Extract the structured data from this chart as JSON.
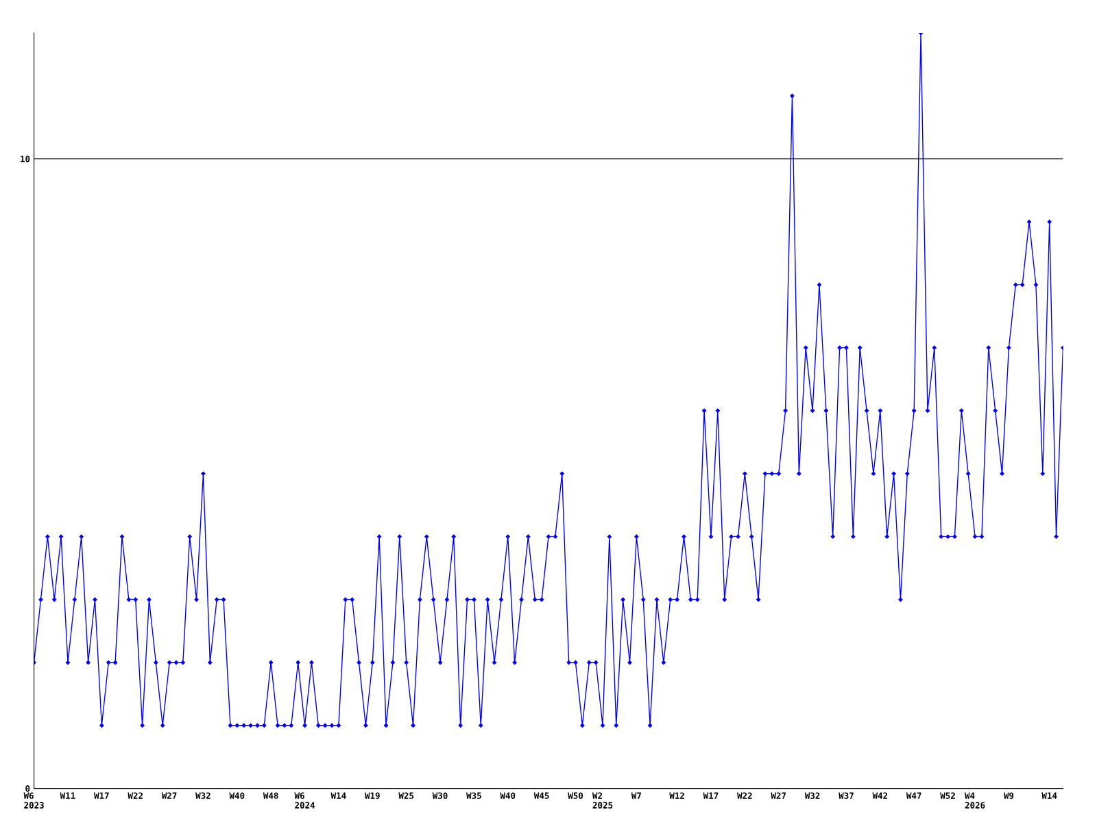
{
  "chart_data": {
    "type": "line",
    "categories": [
      "W6\n2023",
      null,
      null,
      null,
      null,
      "W11",
      null,
      null,
      null,
      null,
      "W17",
      null,
      null,
      null,
      null,
      "W22",
      null,
      null,
      null,
      null,
      "W27",
      null,
      null,
      null,
      null,
      "W32",
      null,
      null,
      null,
      null,
      "W40",
      null,
      null,
      null,
      null,
      "W48",
      null,
      null,
      null,
      null,
      "W6\n2024",
      null,
      null,
      null,
      null,
      "W14",
      null,
      null,
      null,
      null,
      "W19",
      null,
      null,
      null,
      null,
      "W25",
      null,
      null,
      null,
      null,
      "W30",
      null,
      null,
      null,
      null,
      "W35",
      null,
      null,
      null,
      null,
      "W40",
      null,
      null,
      null,
      null,
      "W45",
      null,
      null,
      null,
      null,
      "W50",
      null,
      null,
      null,
      "W2\n2025",
      null,
      null,
      null,
      null,
      "W7",
      null,
      null,
      null,
      null,
      null,
      "W12",
      null,
      null,
      null,
      null,
      "W17",
      null,
      null,
      null,
      null,
      "W22",
      null,
      null,
      null,
      null,
      "W27",
      null,
      null,
      null,
      null,
      "W32",
      null,
      null,
      null,
      null,
      "W37",
      null,
      null,
      null,
      null,
      "W42",
      null,
      null,
      null,
      null,
      "W47",
      null,
      null,
      null,
      null,
      "W52",
      null,
      null,
      null,
      "W4\n2026",
      null,
      null,
      null,
      null,
      "W9",
      null,
      null,
      null,
      null,
      null,
      "W14",
      null,
      null
    ],
    "series": [
      {
        "color": "#0000ff",
        "values": [
          2,
          3,
          4,
          3,
          4,
          2,
          3,
          4,
          2,
          3,
          1,
          2,
          2,
          4,
          3,
          3,
          1,
          3,
          2,
          1,
          2,
          2,
          2,
          4,
          3,
          5,
          2,
          3,
          3,
          1,
          1,
          1,
          1,
          1,
          1,
          2,
          1,
          1,
          1,
          2,
          1,
          2,
          1,
          1,
          1,
          1,
          3,
          3,
          2,
          1,
          2,
          4,
          1,
          2,
          4,
          2,
          1,
          3,
          4,
          3,
          2,
          3,
          4,
          1,
          3,
          3,
          1,
          3,
          2,
          3,
          4,
          2,
          3,
          4,
          3,
          3,
          4,
          4,
          5,
          2,
          2,
          1,
          2,
          2,
          1,
          4,
          1,
          3,
          2,
          4,
          3,
          1,
          3,
          2,
          3,
          3,
          4,
          3,
          3,
          6,
          4,
          6,
          3,
          4,
          4,
          5,
          4,
          3,
          5,
          5,
          5,
          6,
          11,
          5,
          7,
          6,
          8,
          6,
          4,
          7,
          7,
          4,
          7,
          6,
          5,
          6,
          4,
          5,
          3,
          5,
          6,
          12,
          6,
          7,
          4,
          4,
          4,
          6,
          5,
          4,
          4,
          7,
          6,
          5,
          7,
          8,
          8,
          9,
          8,
          5,
          9,
          4,
          7
        ]
      }
    ],
    "ylim": [
      0,
      12
    ],
    "yticks": [
      0,
      10
    ],
    "grid": "y",
    "marker": "diamond",
    "line_style": "solid",
    "legend": false
  }
}
